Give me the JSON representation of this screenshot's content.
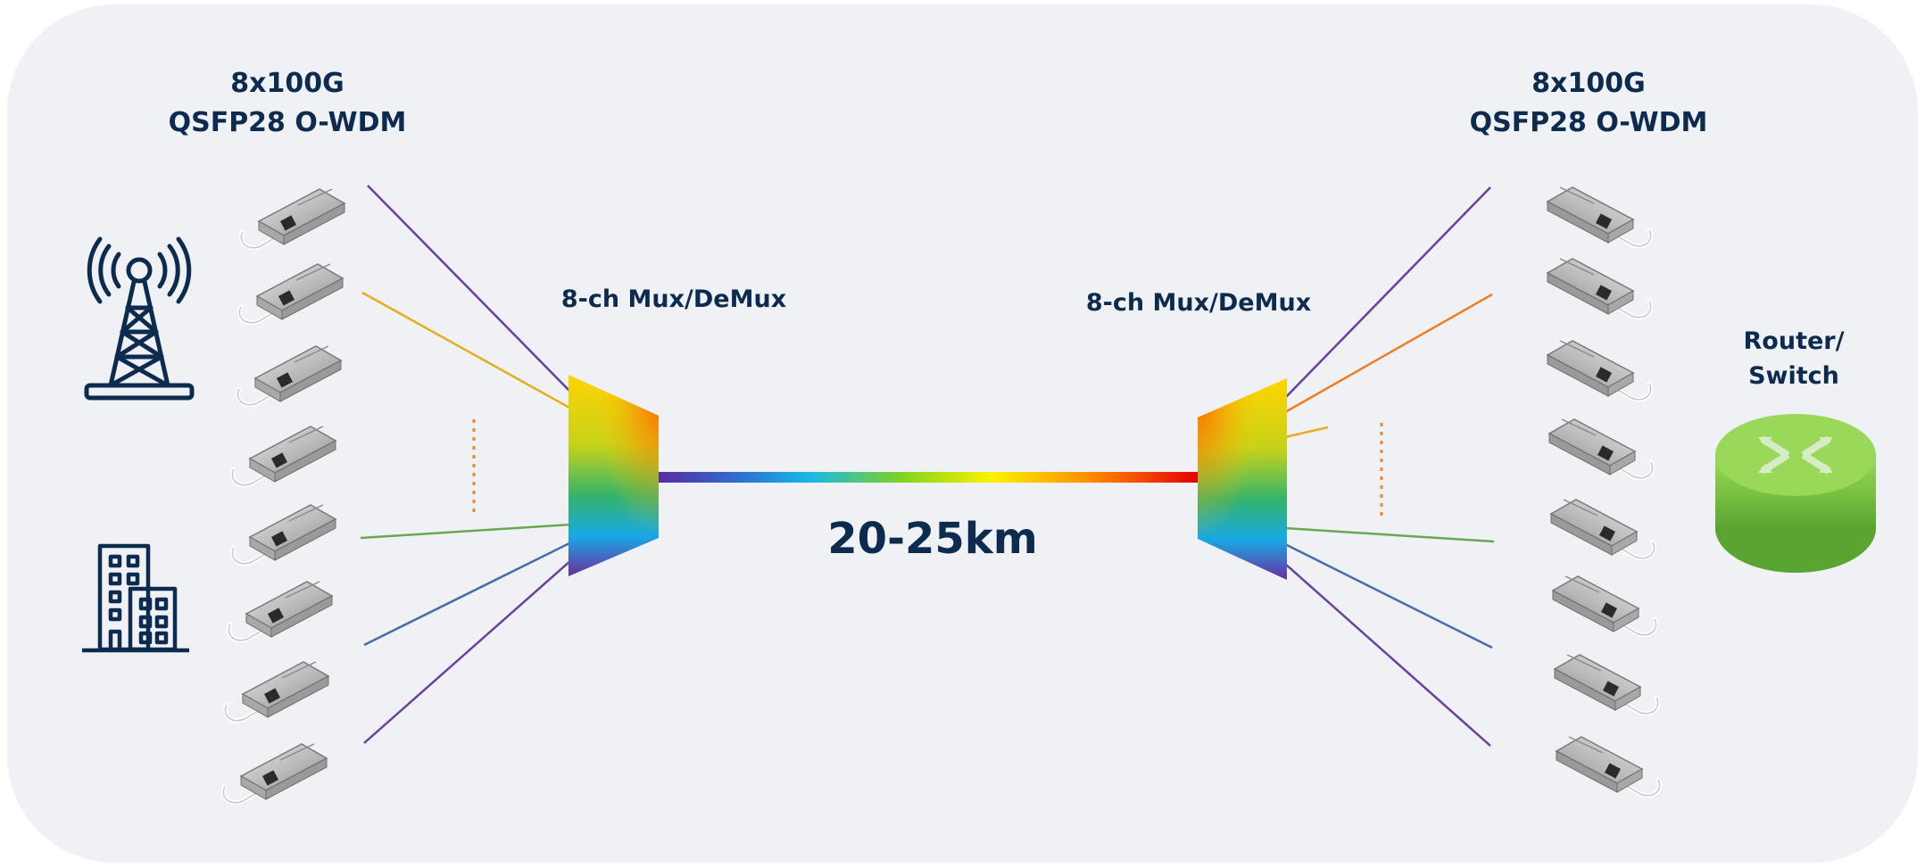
{
  "left_label": {
    "line1": "8x100G",
    "line2": "QSFP28 O-WDM"
  },
  "right_label": {
    "line1": "8x100G",
    "line2": "QSFP28 O-WDM"
  },
  "left_mux_label": "8-ch Mux/DeMux",
  "right_mux_label": "8-ch Mux/DeMux",
  "distance_label": "20-25km",
  "router_label": {
    "line1": "Router/",
    "line2": "Switch"
  },
  "icons": {
    "tower": "cell-tower-icon",
    "building": "building-icon",
    "router": "router-switch-icon",
    "transceiver": "qsfp28-transceiver-icon"
  },
  "colors": {
    "background": "#eff1f5",
    "text": "#0d2b4f",
    "icon": "#0d2b4f",
    "purple": "#6a3fa0",
    "yellow": "#e6ad1c",
    "orange": "#ef7d22",
    "green": "#6aa84f",
    "blue": "#4a6aa8",
    "router_green": "#7cc242",
    "dots": "#ef8a1c"
  },
  "left_channels": [
    "purple",
    "yellow",
    "green",
    "blue",
    "purple"
  ],
  "right_channels": [
    "purple",
    "orange",
    "yellow",
    "green",
    "blue",
    "purple"
  ]
}
